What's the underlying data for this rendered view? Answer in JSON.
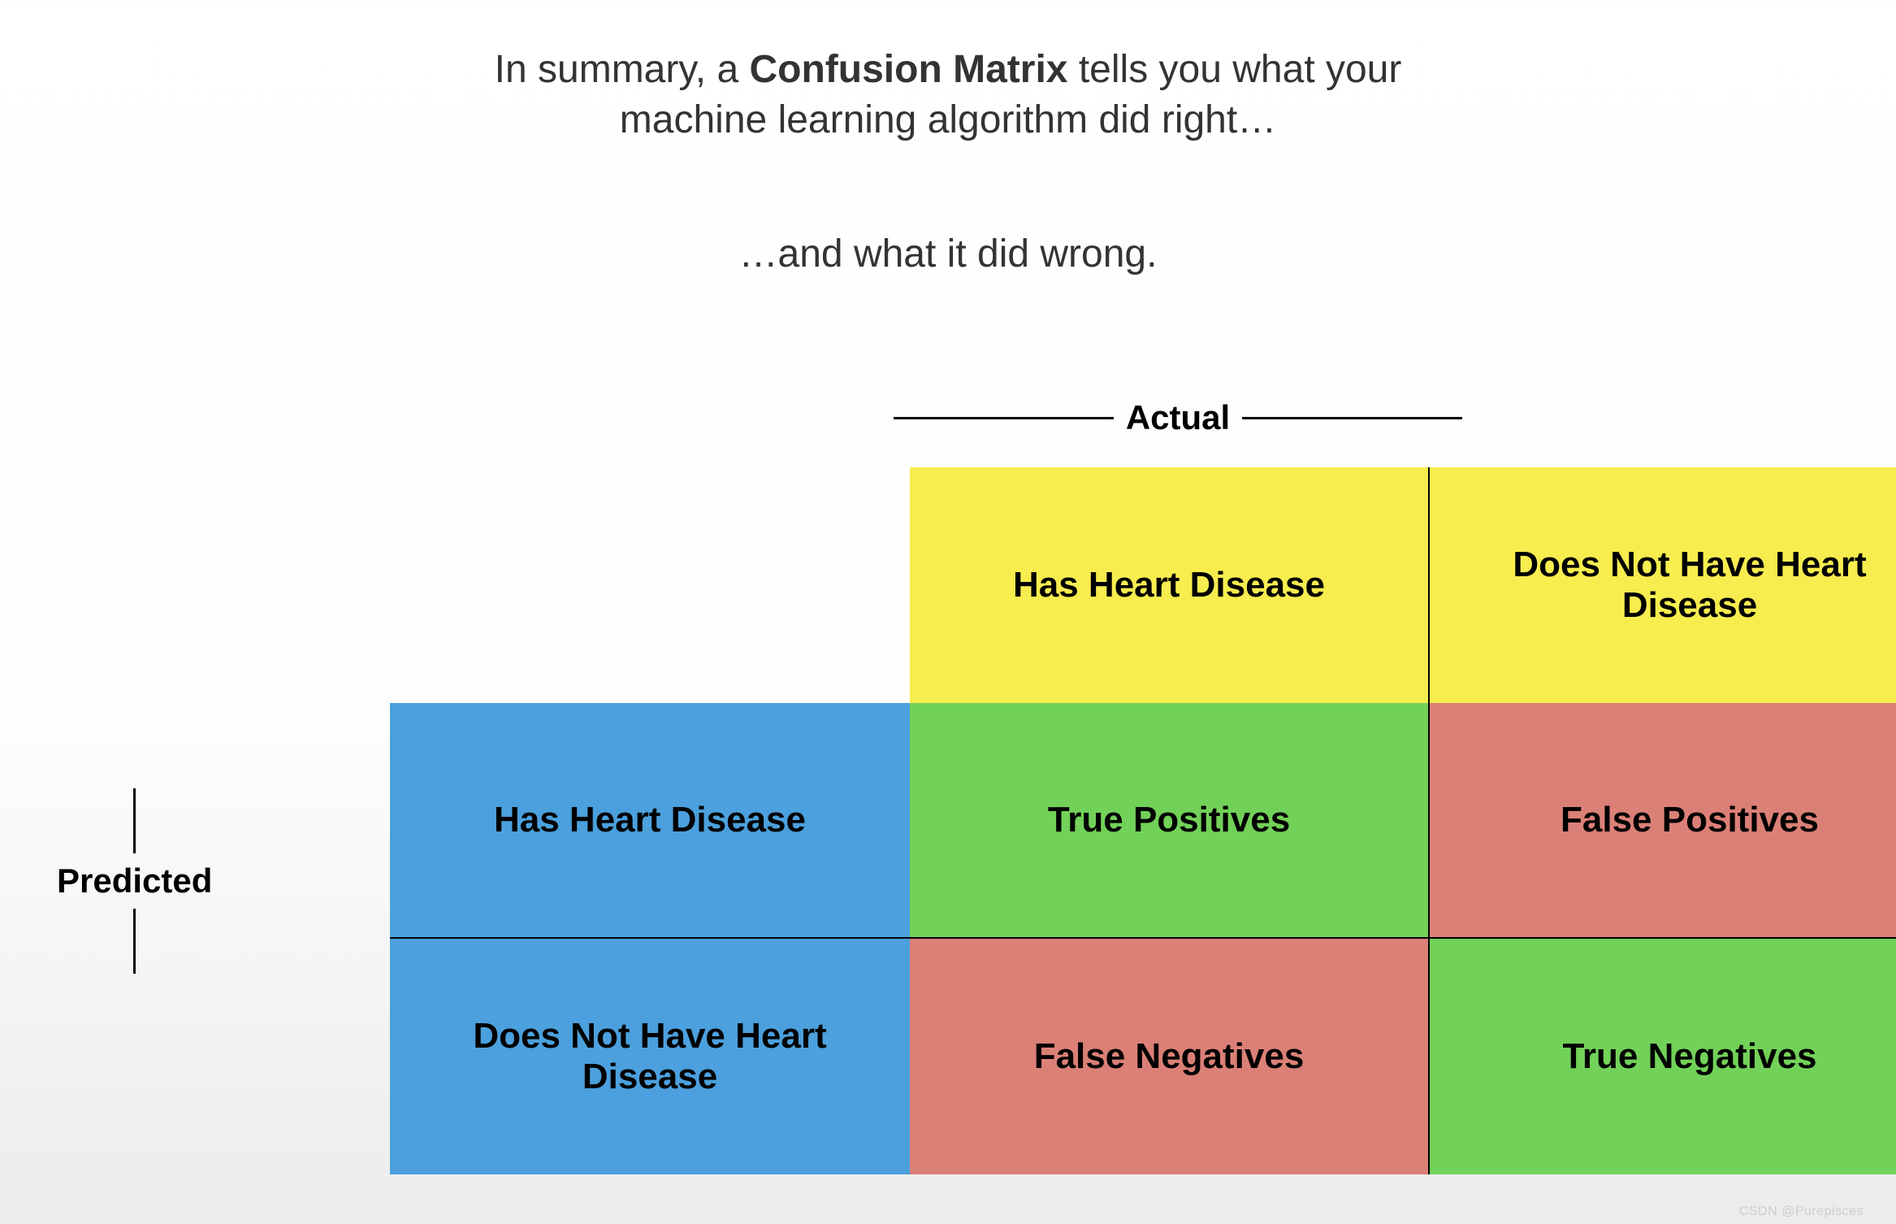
{
  "summary": {
    "line1_prefix": "In summary, a ",
    "line1_bold": "Confusion Matrix",
    "line1_suffix": " tells you what your",
    "line2": "machine learning algorithm did right…",
    "subtext": "…and what it did wrong."
  },
  "labels": {
    "actual": "Actual",
    "predicted": "Predicted"
  },
  "matrix": {
    "col_headers": [
      "Has Heart Disease",
      "Does Not Have Heart Disease"
    ],
    "row_headers": [
      "Has Heart Disease",
      "Does Not Have Heart Disease"
    ],
    "cells": [
      [
        "True Positives",
        "False Positives"
      ],
      [
        "False Negatives",
        "True Negatives"
      ]
    ],
    "colors": {
      "col_header_bg": "#f7ed4f",
      "row_header_bg": "#4ba0dd",
      "true_bg": "#72d158",
      "false_bg": "#db8077",
      "text": "#000000",
      "border": "#000000"
    },
    "cell_fontsize": 44,
    "label_fontsize": 42,
    "summary_fontsize": 48
  },
  "watermark": "CSDN @Purepisces"
}
